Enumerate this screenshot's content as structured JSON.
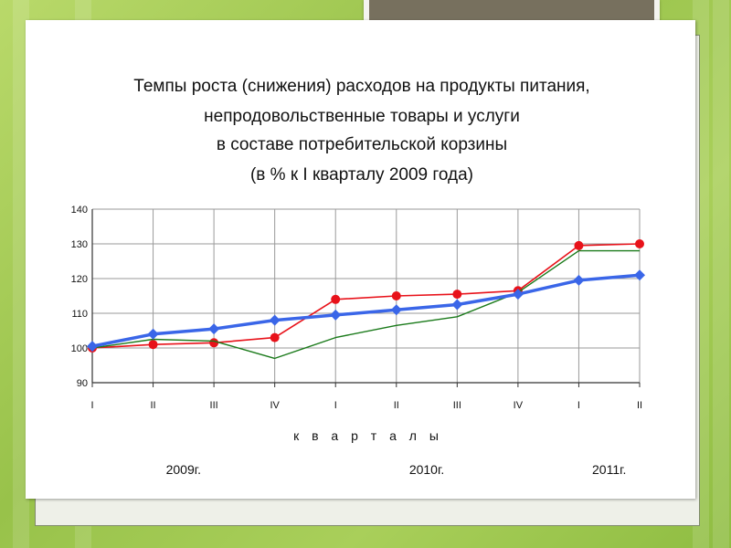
{
  "chart_data": {
    "type": "line",
    "title": [
      "Темпы роста (снижения) расходов на продукты питания,",
      "непродовольственные товары и услуги",
      "в составе потребительской корзины",
      "(в % к I кварталу 2009 года)"
    ],
    "xlabel": "к в а р т а л ы",
    "ylabel": "",
    "categories": [
      "I",
      "II",
      "III",
      "IV",
      "I",
      "II",
      "III",
      "IV",
      "I",
      "II"
    ],
    "years": [
      {
        "label": "2009г.",
        "quarter_index": 1.5
      },
      {
        "label": "2010г.",
        "quarter_index": 5.5
      },
      {
        "label": "2011г.",
        "quarter_index": 8.5
      }
    ],
    "ylim": [
      90,
      140
    ],
    "yticks": [
      90,
      100,
      110,
      120,
      130,
      140
    ],
    "grid": true,
    "legend": "none",
    "series": [
      {
        "color": "#e8121a",
        "marker": "circle",
        "values": [
          100,
          101,
          101.5,
          103,
          114,
          115,
          115.5,
          116.5,
          129.5,
          130
        ]
      },
      {
        "color": "#1a7a1a",
        "marker": "none",
        "values": [
          100,
          102.5,
          102,
          97,
          103,
          106.5,
          109,
          116,
          128,
          128
        ]
      },
      {
        "color": "#3a66e8",
        "marker": "diamond",
        "values": [
          100.5,
          104,
          105.5,
          108,
          109.5,
          111,
          112.5,
          115.5,
          119.5,
          121
        ]
      }
    ]
  }
}
